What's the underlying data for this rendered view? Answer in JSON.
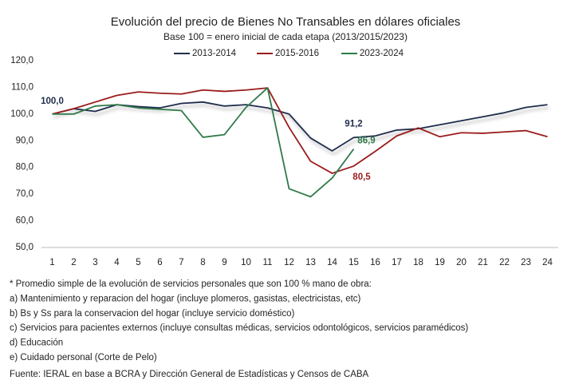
{
  "chart_data": {
    "type": "line",
    "title": "Evolución del precio de Bienes No Transables en dólares oficiales",
    "subtitle": "Base 100 = enero inicial de cada etapa (2013/2015/2023)",
    "x": [
      1,
      2,
      3,
      4,
      5,
      6,
      7,
      8,
      9,
      10,
      11,
      12,
      13,
      14,
      15,
      16,
      17,
      18,
      19,
      20,
      21,
      22,
      23,
      24
    ],
    "xlim": [
      0.5,
      24.5
    ],
    "ylim": [
      50,
      120
    ],
    "yticks": [
      {
        "value": 50,
        "label": "50,0"
      },
      {
        "value": 60,
        "label": "60,0"
      },
      {
        "value": 70,
        "label": "70,0"
      },
      {
        "value": 80,
        "label": "80,0"
      },
      {
        "value": 90,
        "label": "90,0"
      },
      {
        "value": 100,
        "label": "100,0"
      },
      {
        "value": 110,
        "label": "110,0"
      },
      {
        "value": 120,
        "label": "120,0"
      }
    ],
    "grid": false,
    "legend": "top",
    "series": [
      {
        "name": "2013-2014",
        "color": "#1f2d4d",
        "values": [
          100,
          102,
          101,
          103.5,
          102.8,
          102.3,
          104,
          104.5,
          103,
          103.5,
          102.3,
          100,
          91,
          86.2,
          91.2,
          91.8,
          94,
          94.5,
          96,
          97.5,
          99,
          100.5,
          102.5,
          103.5
        ],
        "value_labels": [
          "100,0",
          null,
          null,
          null,
          null,
          null,
          null,
          null,
          null,
          null,
          null,
          null,
          null,
          null,
          "91,2",
          null,
          null,
          null,
          null,
          null,
          null,
          null,
          null,
          null
        ]
      },
      {
        "name": "2015-2016",
        "color": "#9b1c1c",
        "values": [
          100,
          102,
          104.5,
          107,
          108.3,
          107.8,
          107.5,
          109,
          108.5,
          109,
          109.8,
          95,
          82.3,
          77.8,
          80.5,
          86,
          91.8,
          94.8,
          91.5,
          93,
          92.8,
          93.3,
          93.8,
          91.5
        ],
        "value_labels": [
          null,
          null,
          null,
          null,
          null,
          null,
          null,
          null,
          null,
          null,
          null,
          null,
          null,
          null,
          "80,5",
          null,
          null,
          null,
          null,
          null,
          null,
          null,
          null,
          null
        ]
      },
      {
        "name": "2023-2024",
        "color": "#2f7a4a",
        "values": [
          100,
          100,
          103,
          103.5,
          102.3,
          101.8,
          101.3,
          91.3,
          92.3,
          102.5,
          109.8,
          72,
          69,
          76,
          86.9,
          null,
          null,
          null,
          null,
          null,
          null,
          null,
          null,
          null
        ],
        "value_labels": [
          null,
          null,
          null,
          null,
          null,
          null,
          null,
          null,
          null,
          null,
          null,
          null,
          null,
          null,
          "86,9",
          null,
          null,
          null,
          null,
          null,
          null,
          null,
          null,
          null
        ]
      }
    ],
    "notes": [
      "* Promedio simple de la evolución de servicios personales que son 100 % mano de obra:",
      "a) Mantenimiento y reparacion del hogar (incluye plomeros, gasistas, electricistas, etc)",
      "b) Bs y Ss para la conservacion del hogar (incluye servicio doméstico)",
      "c) Servicios para pacientes externos (incluye consultas médicas, servicios odontológicos, servicios paramédicos)",
      "d) Educación",
      "e) Cuidado personal (Corte de Pelo)"
    ],
    "source": "Fuente: IERAL en base a BCRA y Dirección General de Estadísticas y Censos de CABA"
  }
}
